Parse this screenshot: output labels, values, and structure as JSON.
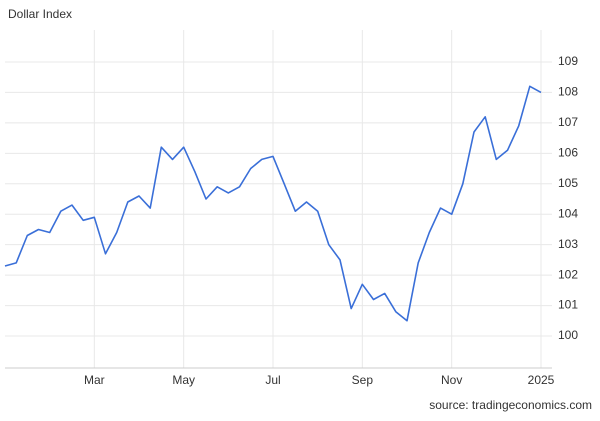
{
  "chart_data": {
    "type": "line",
    "title": "Dollar Index",
    "source": "source: tradingeconomics.com",
    "categories": [
      null,
      null,
      null,
      null,
      null,
      null,
      null,
      null,
      "Mar",
      null,
      null,
      null,
      null,
      null,
      null,
      null,
      "May",
      null,
      null,
      null,
      null,
      null,
      null,
      null,
      "Jul",
      null,
      null,
      null,
      null,
      null,
      null,
      null,
      "Sep",
      null,
      null,
      null,
      null,
      null,
      null,
      null,
      "Nov",
      null,
      null,
      null,
      null,
      null,
      null,
      null,
      "2025"
    ],
    "series": [
      {
        "name": "Dollar Index",
        "color": "#3a6fd8",
        "values": [
          102.3,
          102.4,
          103.3,
          103.5,
          103.4,
          104.1,
          104.3,
          103.8,
          103.9,
          102.7,
          103.4,
          104.4,
          104.6,
          104.2,
          106.2,
          105.8,
          106.2,
          105.4,
          104.5,
          104.9,
          104.7,
          104.9,
          105.5,
          105.8,
          105.9,
          105.0,
          104.1,
          104.4,
          104.1,
          103.0,
          102.5,
          100.9,
          101.7,
          101.2,
          101.4,
          100.8,
          100.5,
          102.4,
          103.4,
          104.2,
          104.0,
          105.0,
          106.7,
          107.2,
          105.8,
          106.1,
          106.9,
          108.2,
          108.0
        ]
      }
    ],
    "ylim": [
      98.95,
      110.05
    ],
    "yticks": [
      100,
      101,
      102,
      103,
      104,
      105,
      106,
      107,
      108,
      109
    ],
    "grid": true
  }
}
